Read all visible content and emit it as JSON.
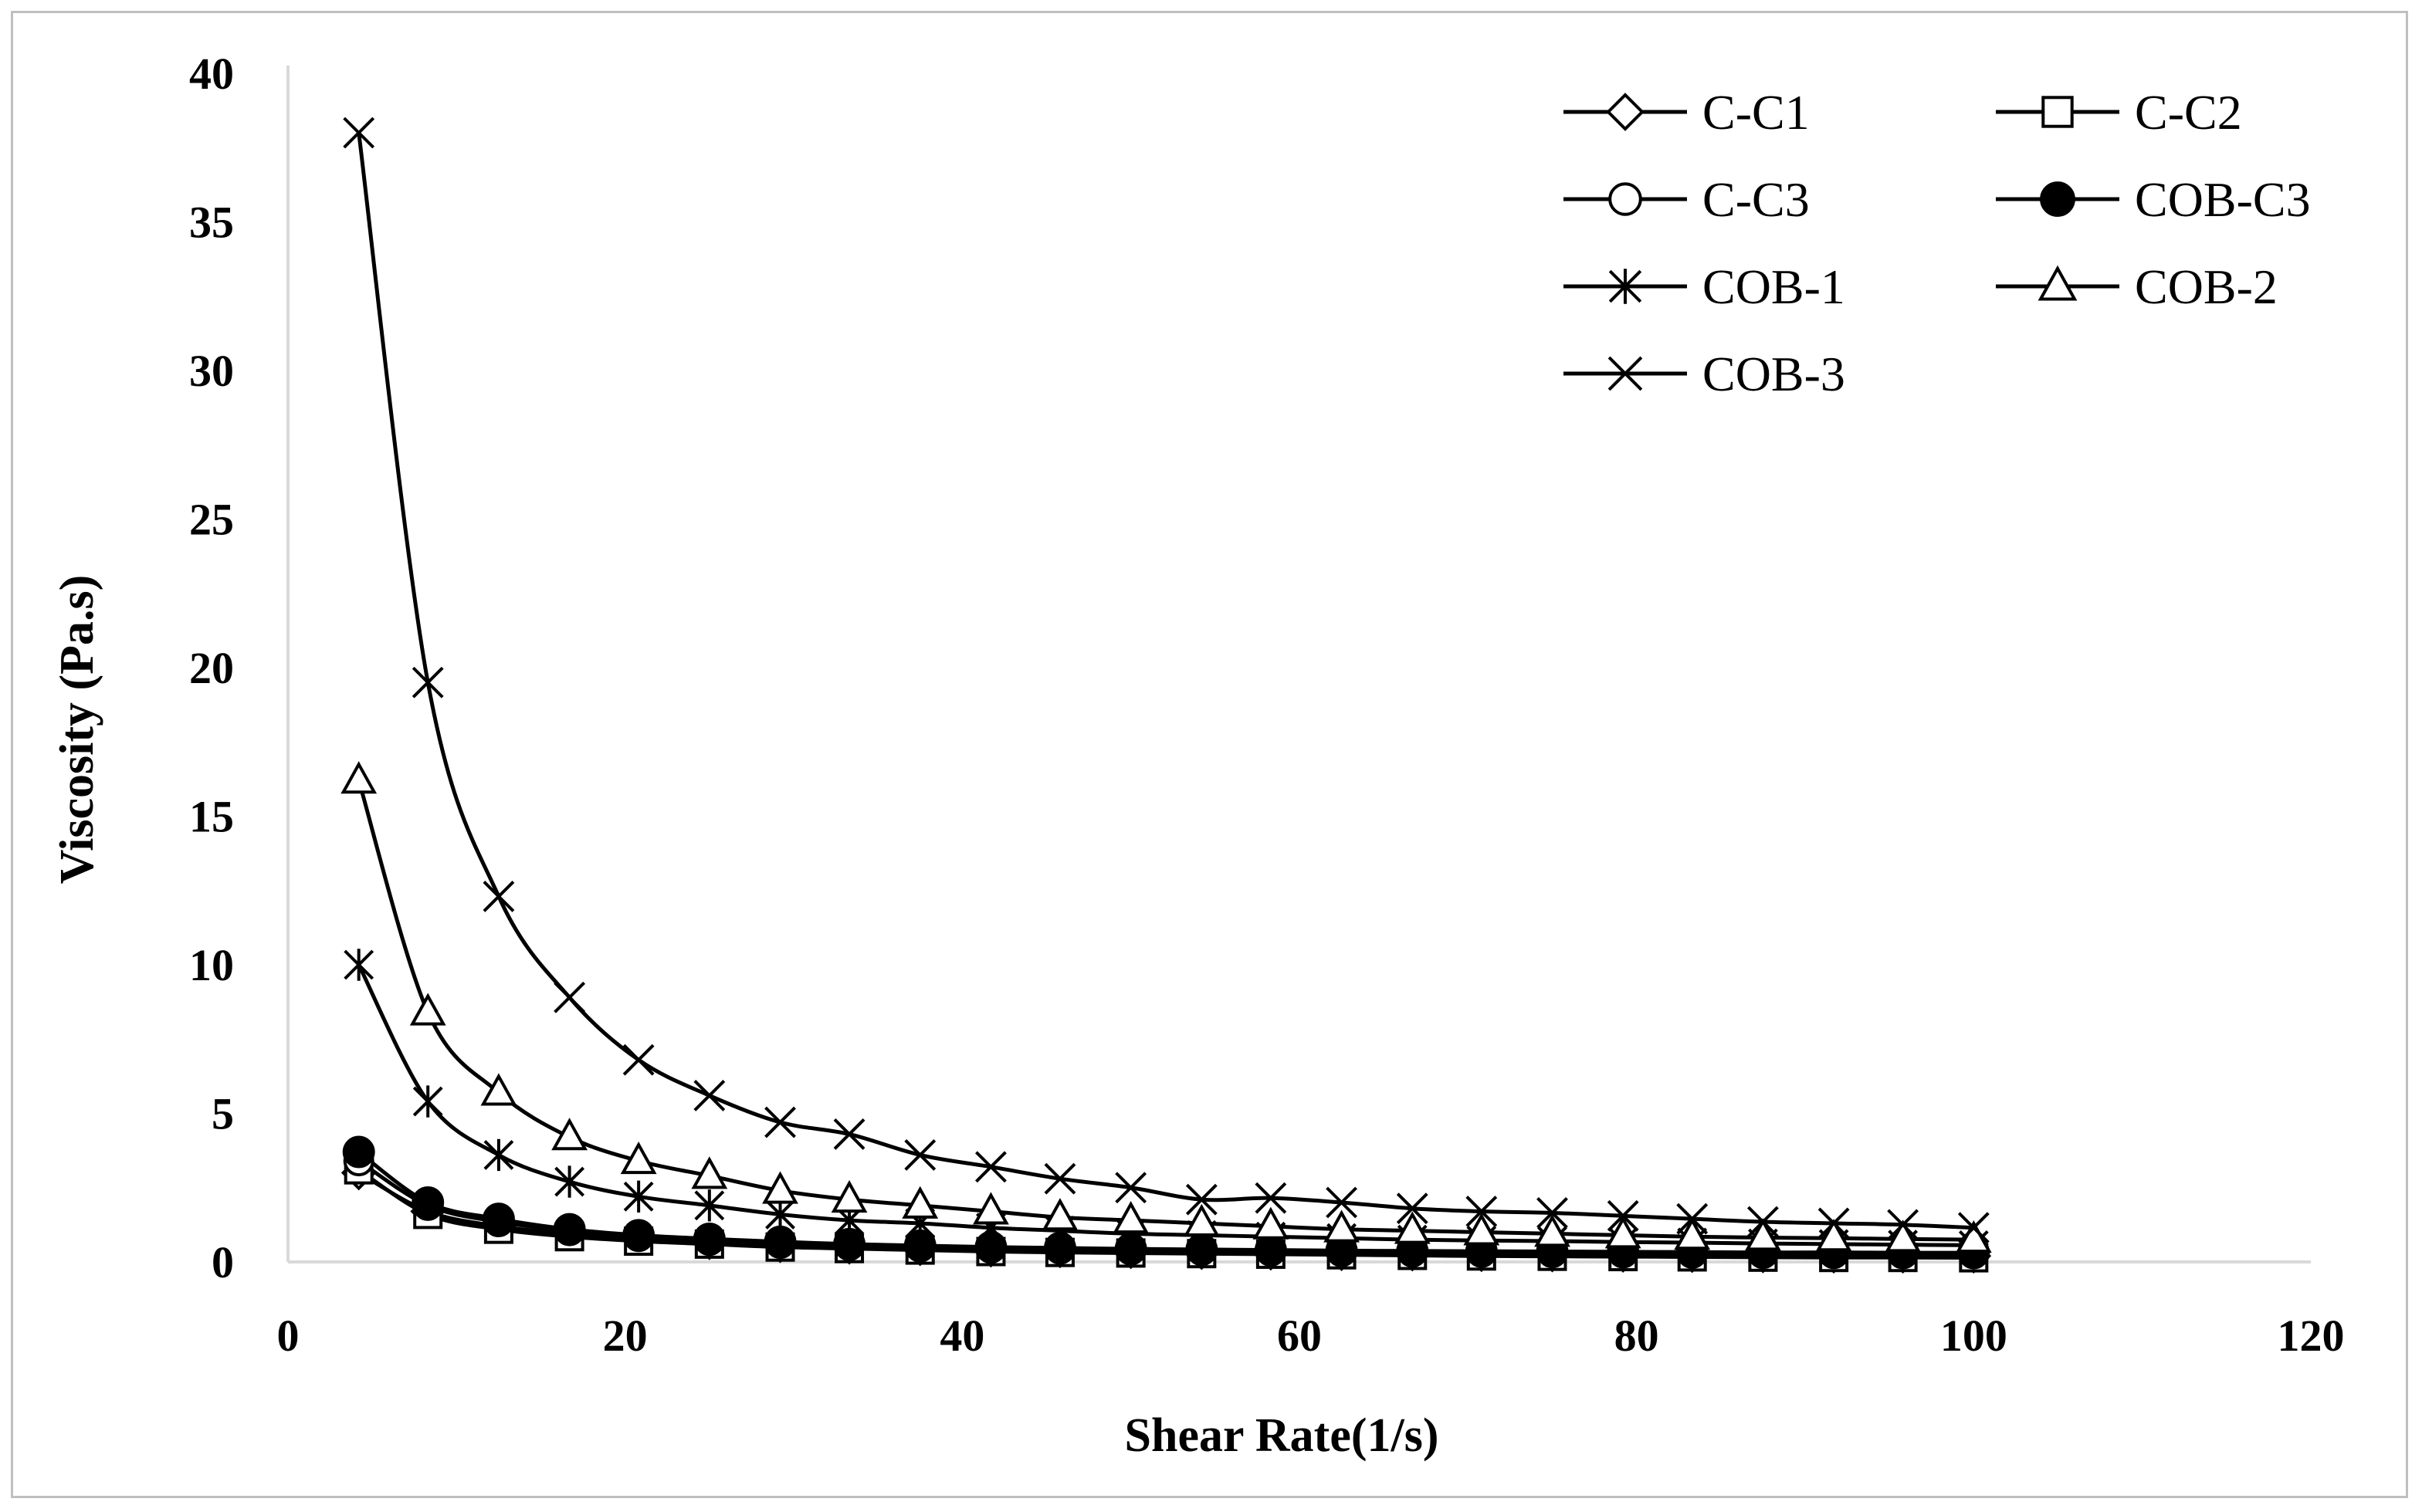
{
  "chart_data": {
    "type": "line",
    "title": "",
    "xlabel": "Shear Rate(1/s)",
    "ylabel": "Viscosity  (Pa.s)",
    "xlim": [
      0,
      120
    ],
    "ylim": [
      0,
      40
    ],
    "xticks": [
      0,
      20,
      40,
      60,
      80,
      100,
      120
    ],
    "yticks": [
      0,
      5,
      10,
      15,
      20,
      25,
      30,
      35,
      40
    ],
    "grid": false,
    "legend_position": "top-right",
    "x": [
      4.2,
      8.3,
      12.5,
      16.7,
      20.8,
      25.0,
      29.2,
      33.3,
      37.5,
      41.7,
      45.8,
      50.0,
      54.2,
      58.3,
      62.5,
      66.7,
      70.8,
      75.0,
      79.2,
      83.3,
      87.5,
      91.7,
      95.8,
      100.0
    ],
    "series": [
      {
        "name": "C-C1",
        "marker": "diamond-open",
        "values": [
          3.0,
          1.7,
          1.2,
          0.95,
          0.8,
          0.65,
          0.55,
          0.5,
          0.45,
          0.4,
          0.38,
          0.35,
          0.32,
          0.3,
          0.28,
          0.27,
          0.25,
          0.24,
          0.23,
          0.22,
          0.21,
          0.2,
          0.2,
          0.2
        ]
      },
      {
        "name": "C-C2",
        "marker": "square-open",
        "values": [
          3.1,
          1.6,
          1.1,
          0.85,
          0.7,
          0.6,
          0.5,
          0.45,
          0.4,
          0.35,
          0.32,
          0.3,
          0.28,
          0.26,
          0.24,
          0.22,
          0.2,
          0.19,
          0.18,
          0.17,
          0.16,
          0.15,
          0.15,
          0.14
        ]
      },
      {
        "name": "C-C3",
        "marker": "circle-open",
        "values": [
          3.4,
          1.9,
          1.35,
          1.05,
          0.85,
          0.72,
          0.62,
          0.55,
          0.5,
          0.46,
          0.43,
          0.4,
          0.38,
          0.36,
          0.34,
          0.33,
          0.32,
          0.31,
          0.3,
          0.29,
          0.28,
          0.28,
          0.27,
          0.27
        ]
      },
      {
        "name": "COB-C3",
        "marker": "circle-filled",
        "values": [
          3.7,
          2.0,
          1.45,
          1.1,
          0.9,
          0.78,
          0.68,
          0.6,
          0.55,
          0.5,
          0.47,
          0.44,
          0.42,
          0.4,
          0.38,
          0.37,
          0.36,
          0.35,
          0.34,
          0.33,
          0.32,
          0.32,
          0.31,
          0.31
        ]
      },
      {
        "name": "COB-1",
        "marker": "asterisk",
        "values": [
          10.0,
          5.4,
          3.6,
          2.7,
          2.2,
          1.9,
          1.6,
          1.4,
          1.3,
          1.15,
          1.05,
          0.95,
          0.9,
          0.85,
          0.8,
          0.75,
          0.72,
          0.7,
          0.67,
          0.65,
          0.62,
          0.6,
          0.58,
          0.56
        ]
      },
      {
        "name": "COB-2",
        "marker": "triangle-open",
        "values": [
          16.2,
          8.4,
          5.7,
          4.2,
          3.4,
          2.9,
          2.4,
          2.1,
          1.9,
          1.7,
          1.5,
          1.4,
          1.3,
          1.2,
          1.1,
          1.05,
          1.0,
          0.95,
          0.9,
          0.85,
          0.82,
          0.8,
          0.77,
          0.75
        ]
      },
      {
        "name": "COB-3",
        "marker": "x-cross",
        "values": [
          38.0,
          19.5,
          12.3,
          8.9,
          6.8,
          5.6,
          4.7,
          4.3,
          3.6,
          3.2,
          2.8,
          2.5,
          2.1,
          2.15,
          2.0,
          1.8,
          1.7,
          1.65,
          1.55,
          1.45,
          1.35,
          1.3,
          1.25,
          1.15
        ]
      }
    ],
    "legend_order": [
      "C-C1",
      "C-C2",
      "C-C3",
      "COB-C3",
      "COB-1",
      "COB-2",
      "COB-3"
    ]
  },
  "colors": {
    "line": "#000000",
    "frame": "#bfbfbf",
    "axis": "#d9d9d9"
  }
}
